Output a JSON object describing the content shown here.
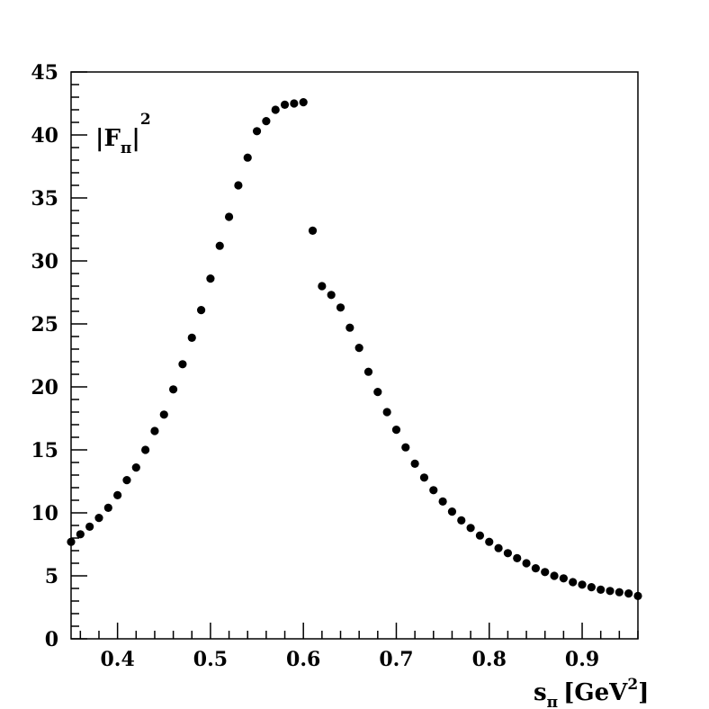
{
  "chart_data": {
    "type": "scatter",
    "title": "",
    "xlabel": {
      "main": "s",
      "sub": "π",
      "unit_prefix": "[GeV",
      "unit_sup": "2",
      "unit_suffix": "]"
    },
    "ylabel": {
      "prefix": "|F",
      "sub": "π",
      "suffix": "|",
      "sup": "2"
    },
    "xlim": [
      0.35,
      0.96
    ],
    "ylim": [
      0,
      45
    ],
    "xticks": [
      0.4,
      0.5,
      0.6,
      0.7,
      0.8,
      0.9
    ],
    "xtick_labels": [
      "0.4",
      "0.5",
      "0.6",
      "0.7",
      "0.8",
      "0.9"
    ],
    "yticks": [
      0,
      5,
      10,
      15,
      20,
      25,
      30,
      35,
      40,
      45
    ],
    "ytick_labels": [
      "0",
      "5",
      "10",
      "15",
      "20",
      "25",
      "30",
      "35",
      "40",
      "45"
    ],
    "grid": false,
    "marker_color": "#000000",
    "series": [
      {
        "x": [
          0.35,
          0.36,
          0.37,
          0.38,
          0.39,
          0.4,
          0.41,
          0.42,
          0.43,
          0.44,
          0.45,
          0.46,
          0.47,
          0.48,
          0.49,
          0.5,
          0.51,
          0.52,
          0.53,
          0.54,
          0.55,
          0.56,
          0.57,
          0.58,
          0.59,
          0.6,
          0.61,
          0.62,
          0.63,
          0.64,
          0.65,
          0.66,
          0.67,
          0.68,
          0.69,
          0.7,
          0.71,
          0.72,
          0.73,
          0.74,
          0.75,
          0.76,
          0.77,
          0.78,
          0.79,
          0.8,
          0.81,
          0.82,
          0.83,
          0.84,
          0.85,
          0.86,
          0.87,
          0.88,
          0.89,
          0.9,
          0.91,
          0.92,
          0.93,
          0.94,
          0.95,
          0.96
        ],
        "y": [
          7.7,
          8.3,
          8.9,
          9.6,
          10.4,
          11.4,
          12.6,
          13.6,
          15.0,
          16.5,
          17.8,
          19.8,
          21.8,
          23.9,
          26.1,
          28.6,
          31.2,
          33.5,
          36.0,
          38.2,
          40.3,
          41.1,
          42.0,
          42.4,
          42.5,
          42.6,
          32.4,
          28.0,
          27.3,
          26.3,
          24.7,
          23.1,
          21.2,
          19.6,
          18.0,
          16.6,
          15.2,
          13.9,
          12.8,
          11.8,
          10.9,
          10.1,
          9.4,
          8.8,
          8.2,
          7.7,
          7.2,
          6.8,
          6.4,
          6.0,
          5.6,
          5.3,
          5.0,
          4.8,
          4.5,
          4.3,
          4.1,
          3.9,
          3.8,
          3.7,
          3.6,
          3.4
        ]
      }
    ]
  }
}
